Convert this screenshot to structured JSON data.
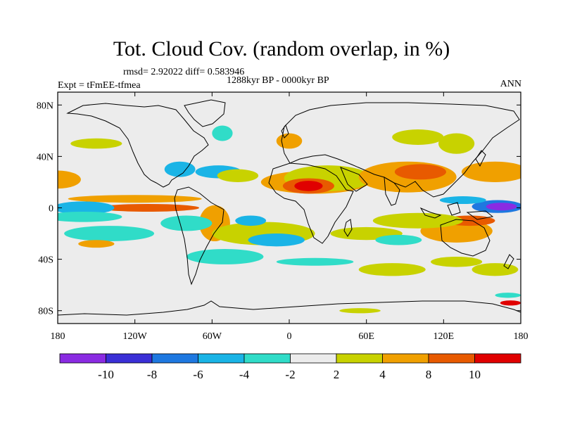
{
  "title": "Tot. Cloud Cov. (random overlap, in %)",
  "stats": "rmsd= 2.92022  diff= 0.583946",
  "period": "1288kyr BP - 0000kyr BP",
  "experiment": "Expt = tFmEE-tfmea",
  "season": "ANN",
  "map": {
    "lon_range": [
      -180,
      180
    ],
    "lat_range": [
      -90,
      90
    ],
    "x_ticks": [
      {
        "lon": -180,
        "label": "180"
      },
      {
        "lon": -120,
        "label": "120W"
      },
      {
        "lon": -60,
        "label": "60W"
      },
      {
        "lon": 0,
        "label": "0"
      },
      {
        "lon": 60,
        "label": "60E"
      },
      {
        "lon": 120,
        "label": "120E"
      },
      {
        "lon": 180,
        "label": "180"
      }
    ],
    "y_ticks": [
      {
        "lat": 80,
        "label": "80N"
      },
      {
        "lat": 40,
        "label": "40N"
      },
      {
        "lat": 0,
        "label": "0"
      },
      {
        "lat": -40,
        "label": "40S"
      },
      {
        "lat": -80,
        "label": "80S"
      }
    ]
  },
  "colorbar": {
    "levels": [
      -12,
      -10,
      -8,
      -6,
      -4,
      -2,
      2,
      4,
      8,
      10
    ],
    "labels": [
      "-10",
      "-8",
      "-6",
      "-4",
      "-2",
      "2",
      "4",
      "8",
      "10"
    ],
    "colors": [
      "#8a2be2",
      "#3a2fd6",
      "#1e78e0",
      "#1ab4e6",
      "#30dcc8",
      "#ececec",
      "#c8d200",
      "#f0a000",
      "#e85a00",
      "#e00000"
    ]
  },
  "anomaly_regions": [
    {
      "lon": 20,
      "lat": 20,
      "rx": 42,
      "ry": 9,
      "level": "4"
    },
    {
      "lon": 30,
      "lat": 23,
      "rx": 34,
      "ry": 10,
      "level": "2"
    },
    {
      "lon": 15,
      "lat": 17,
      "rx": 20,
      "ry": 6,
      "level": "8"
    },
    {
      "lon": 15,
      "lat": 17,
      "rx": 11,
      "ry": 4,
      "level": "10"
    },
    {
      "lon": 92,
      "lat": 24,
      "rx": 38,
      "ry": 12,
      "level": "4"
    },
    {
      "lon": 102,
      "lat": 28,
      "rx": 20,
      "ry": 6,
      "level": "8"
    },
    {
      "lon": 160,
      "lat": 28,
      "rx": 26,
      "ry": 8,
      "level": "4"
    },
    {
      "lon": 130,
      "lat": 50,
      "rx": 14,
      "ry": 8,
      "level": "2"
    },
    {
      "lon": -180,
      "lat": 22,
      "rx": 18,
      "ry": 7,
      "level": "4"
    },
    {
      "lon": -85,
      "lat": 30,
      "rx": 12,
      "ry": 6,
      "level": "-4"
    },
    {
      "lon": -55,
      "lat": 28,
      "rx": 18,
      "ry": 5,
      "level": "-4"
    },
    {
      "lon": -40,
      "lat": 25,
      "rx": 16,
      "ry": 5,
      "level": "2"
    },
    {
      "lon": -52,
      "lat": 58,
      "rx": 8,
      "ry": 6,
      "level": "-2"
    },
    {
      "lon": -120,
      "lat": 7,
      "rx": 52,
      "ry": 3,
      "level": "4"
    },
    {
      "lon": -110,
      "lat": 0,
      "rx": 40,
      "ry": 3,
      "level": "8"
    },
    {
      "lon": -160,
      "lat": 0,
      "rx": 24,
      "ry": 5,
      "level": "-4"
    },
    {
      "lon": -160,
      "lat": -7,
      "rx": 30,
      "ry": 4,
      "level": "-2"
    },
    {
      "lon": 162,
      "lat": 1,
      "rx": 20,
      "ry": 5,
      "level": "-6"
    },
    {
      "lon": 165,
      "lat": 1,
      "rx": 12,
      "ry": 3,
      "level": "-10"
    },
    {
      "lon": 135,
      "lat": 6,
      "rx": 18,
      "ry": 3,
      "level": "-4"
    },
    {
      "lon": 130,
      "lat": -18,
      "rx": 28,
      "ry": 9,
      "level": "4"
    },
    {
      "lon": 140,
      "lat": -10,
      "rx": 20,
      "ry": 4,
      "level": "8"
    },
    {
      "lon": 100,
      "lat": -10,
      "rx": 35,
      "ry": 6,
      "level": "2"
    },
    {
      "lon": -58,
      "lat": -12,
      "rx": 12,
      "ry": 14,
      "level": "4"
    },
    {
      "lon": -80,
      "lat": -12,
      "rx": 20,
      "ry": 6,
      "level": "-2"
    },
    {
      "lon": -20,
      "lat": -20,
      "rx": 40,
      "ry": 9,
      "level": "2"
    },
    {
      "lon": -10,
      "lat": -25,
      "rx": 22,
      "ry": 5,
      "level": "-4"
    },
    {
      "lon": -30,
      "lat": -10,
      "rx": 12,
      "ry": 4,
      "level": "-4"
    },
    {
      "lon": 60,
      "lat": -20,
      "rx": 28,
      "ry": 5,
      "level": "2"
    },
    {
      "lon": 85,
      "lat": -25,
      "rx": 18,
      "ry": 4,
      "level": "-2"
    },
    {
      "lon": -140,
      "lat": -20,
      "rx": 35,
      "ry": 6,
      "level": "-2"
    },
    {
      "lon": -150,
      "lat": -28,
      "rx": 14,
      "ry": 3,
      "level": "4"
    },
    {
      "lon": -50,
      "lat": -38,
      "rx": 30,
      "ry": 6,
      "level": "-2"
    },
    {
      "lon": 20,
      "lat": -42,
      "rx": 30,
      "ry": 3,
      "level": "-2"
    },
    {
      "lon": 80,
      "lat": -48,
      "rx": 26,
      "ry": 5,
      "level": "2"
    },
    {
      "lon": 130,
      "lat": -42,
      "rx": 20,
      "ry": 4,
      "level": "2"
    },
    {
      "lon": 160,
      "lat": -48,
      "rx": 18,
      "ry": 5,
      "level": "2"
    },
    {
      "lon": 0,
      "lat": 52,
      "rx": 10,
      "ry": 6,
      "level": "4"
    },
    {
      "lon": 100,
      "lat": 55,
      "rx": 20,
      "ry": 6,
      "level": "2"
    },
    {
      "lon": 170,
      "lat": -68,
      "rx": 10,
      "ry": 2,
      "level": "-2"
    },
    {
      "lon": 172,
      "lat": -74,
      "rx": 8,
      "ry": 2,
      "level": "10"
    },
    {
      "lon": 55,
      "lat": -80,
      "rx": 16,
      "ry": 2,
      "level": "2"
    },
    {
      "lon": -150,
      "lat": 50,
      "rx": 20,
      "ry": 4,
      "level": "2"
    }
  ]
}
